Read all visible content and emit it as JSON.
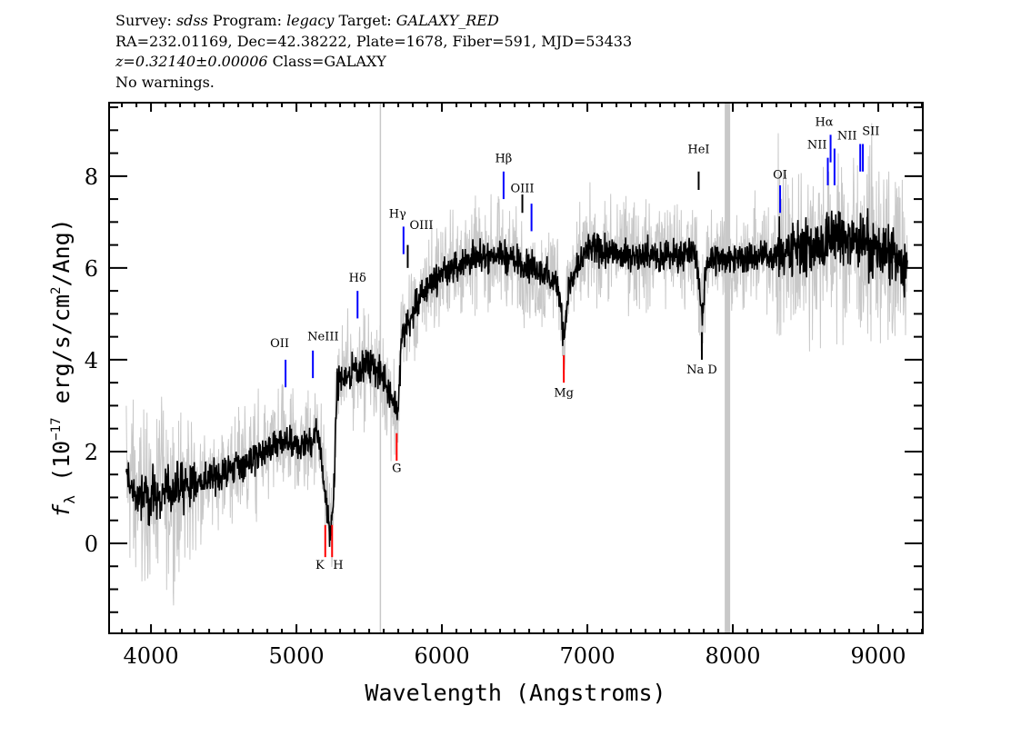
{
  "header": {
    "line1": {
      "survey_label": "Survey:",
      "survey": "sdss",
      "program_label": "Program:",
      "program": "legacy",
      "target_label": "Target:",
      "target": "GALAXY_RED"
    },
    "line2": "RA=232.01169, Dec=42.38222, Plate=1678, Fiber=591, MJD=53433",
    "line3": {
      "z": "z=0.32140±0.00006",
      "class": "Class=GALAXY"
    },
    "line4": "No warnings."
  },
  "chart_data": {
    "type": "line",
    "title": "",
    "xlabel": "Wavelength (Angstroms)",
    "ylabel": "f_λ (10^-17 erg/s/cm^2/Ang)",
    "ylabel_parts": {
      "f": "f",
      "sub": "λ",
      "a": " (10",
      "exp1": "−17",
      "b": " erg/s/cm",
      "exp2": "2",
      "c": "/Ang)"
    },
    "xlim": [
      3712,
      9306
    ],
    "ylim": [
      -1.96,
      9.6
    ],
    "xticks": [
      4000,
      5000,
      6000,
      7000,
      8000,
      9000
    ],
    "yticks": [
      0,
      2,
      4,
      6,
      8
    ],
    "grid": false,
    "colors": {
      "flux": "#000000",
      "error_band": "#c8c8c8",
      "emission": "#0000ff",
      "absorption": "#ff0000",
      "other": "#000000"
    },
    "flux_approx": {
      "wavelength": [
        3830,
        3900,
        4000,
        4200,
        4400,
        4600,
        4800,
        4900,
        5000,
        5100,
        5150,
        5200,
        5230,
        5250,
        5280,
        5400,
        5500,
        5600,
        5680,
        5700,
        5720,
        5800,
        5900,
        6000,
        6200,
        6400,
        6600,
        6800,
        6840,
        6870,
        7000,
        7200,
        7500,
        7750,
        7790,
        7820,
        8000,
        8300,
        8600,
        8700,
        9000,
        9200
      ],
      "flux": [
        1.5,
        1.0,
        1.0,
        1.2,
        1.4,
        1.7,
        2.0,
        2.2,
        2.1,
        2.2,
        2.5,
        1.0,
        0.3,
        0.5,
        3.5,
        3.8,
        3.9,
        3.6,
        3.0,
        2.8,
        4.5,
        5.0,
        5.6,
        5.9,
        6.2,
        6.3,
        6.0,
        5.7,
        4.4,
        5.6,
        6.4,
        6.3,
        6.3,
        6.3,
        4.8,
        6.2,
        6.2,
        6.3,
        6.5,
        6.7,
        6.4,
        6.0
      ]
    },
    "sky_lines": [
      5577,
      7963
    ],
    "lines": [
      {
        "label": "OII",
        "wavelength": 4925,
        "type": "emission",
        "y0": 3.4,
        "y1": 4.0,
        "label_y": 4.28
      },
      {
        "label": "NeIII",
        "wavelength": 5113,
        "type": "emission",
        "y0": 3.6,
        "y1": 4.2,
        "label_y": 4.42
      },
      {
        "label": "K",
        "wavelength": 5198,
        "type": "absorption",
        "y0": -0.3,
        "y1": 0.4,
        "label_y": -0.55
      },
      {
        "label": "H",
        "wavelength": 5245,
        "type": "absorption",
        "y0": -0.3,
        "y1": 0.4,
        "label_y": -0.55
      },
      {
        "label": "Hδ",
        "wavelength": 5420,
        "type": "emission",
        "y0": 4.9,
        "y1": 5.5,
        "label_y": 5.7
      },
      {
        "label": "G",
        "wavelength": 5689,
        "type": "absorption",
        "y0": 1.8,
        "y1": 2.4,
        "label_y": 1.55
      },
      {
        "label": "Hγ",
        "wavelength": 5736,
        "type": "emission",
        "y0": 6.3,
        "y1": 6.9,
        "label_y": 7.1
      },
      {
        "label": "OIII",
        "wavelength": 5765,
        "type": "other",
        "y0": 6.0,
        "y1": 6.5,
        "label_y": 6.85
      },
      {
        "label": "Hβ",
        "wavelength": 6424,
        "type": "emission",
        "y0": 7.5,
        "y1": 8.1,
        "label_y": 8.3
      },
      {
        "label": "OIII",
        "wavelength": 6553,
        "type": "other",
        "y0": 7.2,
        "y1": 7.6,
        "label_y": 7.65
      },
      {
        "label": "",
        "wavelength": 6616,
        "type": "emission",
        "y0": 6.8,
        "y1": 7.4,
        "label_y": 0
      },
      {
        "label": "Mg",
        "wavelength": 6838,
        "type": "absorption",
        "y0": 3.5,
        "y1": 4.1,
        "label_y": 3.2
      },
      {
        "label": "HeI",
        "wavelength": 7765,
        "type": "other",
        "y0": 7.7,
        "y1": 8.1,
        "label_y": 8.5
      },
      {
        "label": "Na D",
        "wavelength": 7787,
        "type": "other",
        "y0": 4.0,
        "y1": 4.6,
        "label_y": 3.7
      },
      {
        "label": "OI",
        "wavelength": 8325,
        "type": "emission",
        "y0": 7.2,
        "y1": 7.8,
        "label_y": 7.95
      },
      {
        "label": "NII",
        "wavelength": 8653,
        "type": "emission",
        "y0": 7.8,
        "y1": 8.4,
        "label_y": 8.6
      },
      {
        "label": "Hα",
        "wavelength": 8672,
        "type": "emission",
        "y0": 8.3,
        "y1": 8.9,
        "label_y": 9.1
      },
      {
        "label": "NII",
        "wavelength": 8699,
        "type": "emission",
        "y0": 7.8,
        "y1": 8.6,
        "label_y": 8.8
      },
      {
        "label": "SII",
        "wavelength": 8876,
        "type": "emission",
        "y0": 8.1,
        "y1": 8.7,
        "label_y": 8.9
      },
      {
        "label": "",
        "wavelength": 8894,
        "type": "emission",
        "y0": 8.1,
        "y1": 8.7,
        "label_y": 0
      }
    ]
  }
}
